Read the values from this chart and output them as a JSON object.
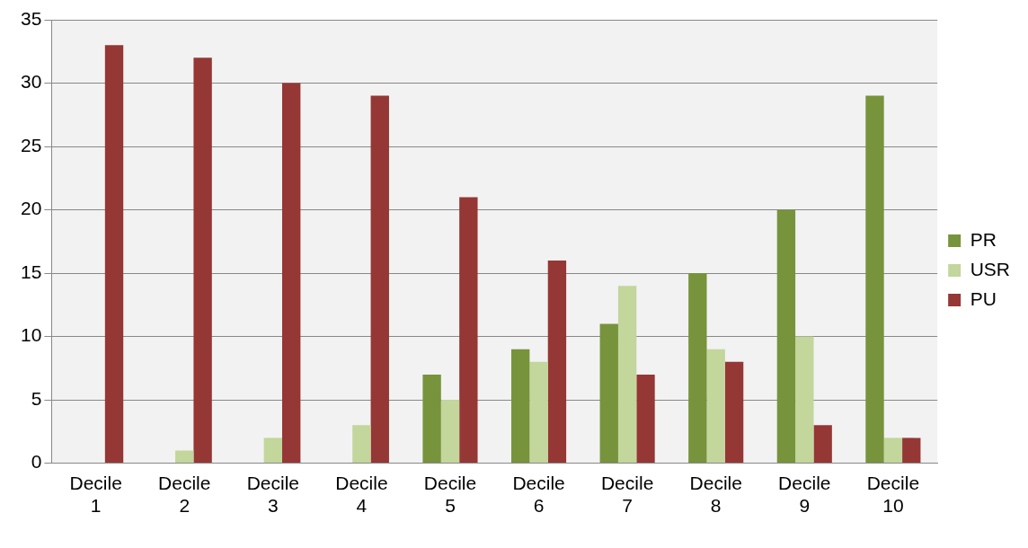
{
  "chart_data": {
    "type": "bar",
    "categories": [
      "Decile 1",
      "Decile 2",
      "Decile 3",
      "Decile 4",
      "Decile 5",
      "Decile 6",
      "Decile 7",
      "Decile 8",
      "Decile 9",
      "Decile 10"
    ],
    "series": [
      {
        "name": "PR",
        "color": "#77933c",
        "values": [
          0,
          0,
          0,
          0,
          7,
          9,
          11,
          15,
          20,
          29
        ]
      },
      {
        "name": "USR",
        "color": "#c3d69b",
        "values": [
          0,
          1,
          2,
          3,
          5,
          8,
          14,
          9,
          10,
          2
        ]
      },
      {
        "name": "PU",
        "color": "#953735",
        "values": [
          33,
          32,
          30,
          29,
          21,
          16,
          7,
          8,
          3,
          2
        ]
      }
    ],
    "ylim": [
      0,
      35
    ],
    "yticks": [
      0,
      5,
      10,
      15,
      20,
      25,
      30,
      35
    ],
    "grid": "y",
    "legend": "right"
  }
}
